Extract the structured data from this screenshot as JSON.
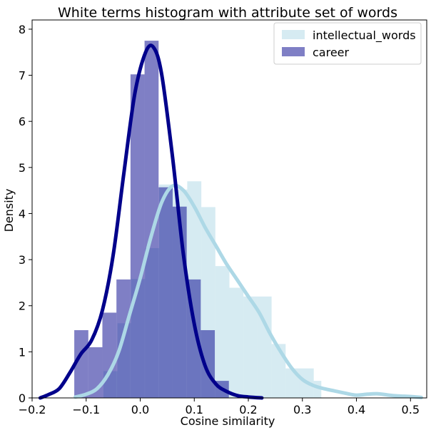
{
  "chart_data": {
    "type": "histogram",
    "title": "White terms histogram with attribute set of words",
    "xlabel": "Cosine similarity",
    "ylabel": "Density",
    "xlim": [
      -0.2,
      0.53
    ],
    "ylim": [
      0,
      8.2
    ],
    "xticks": [
      -0.2,
      -0.1,
      0.0,
      0.1,
      0.2,
      0.3,
      0.4,
      0.5
    ],
    "xtick_labels": [
      "−0.2",
      "−0.1",
      "0.0",
      "0.1",
      "0.2",
      "0.3",
      "0.4",
      "0.5"
    ],
    "yticks": [
      0,
      1,
      2,
      3,
      4,
      5,
      6,
      7,
      8
    ],
    "ytick_labels": [
      "0",
      "1",
      "2",
      "3",
      "4",
      "5",
      "6",
      "7",
      "8"
    ],
    "legend_position": "top-right",
    "series": [
      {
        "name": "intellectual_words",
        "color": "#add8e6",
        "bar_alpha": 0.5,
        "bins": [
          {
            "x0": -0.068,
            "x1": -0.042,
            "density": 0.58
          },
          {
            "x0": -0.042,
            "x1": -0.017,
            "density": 1.62
          },
          {
            "x0": -0.017,
            "x1": 0.009,
            "density": 2.58
          },
          {
            "x0": 0.009,
            "x1": 0.035,
            "density": 3.25
          },
          {
            "x0": 0.035,
            "x1": 0.061,
            "density": 4.63
          },
          {
            "x0": 0.061,
            "x1": 0.087,
            "density": 4.52
          },
          {
            "x0": 0.087,
            "x1": 0.113,
            "density": 4.7
          },
          {
            "x0": 0.113,
            "x1": 0.139,
            "density": 4.14
          },
          {
            "x0": 0.139,
            "x1": 0.165,
            "density": 2.86
          },
          {
            "x0": 0.165,
            "x1": 0.191,
            "density": 2.39
          },
          {
            "x0": 0.191,
            "x1": 0.217,
            "density": 2.2
          },
          {
            "x0": 0.217,
            "x1": 0.243,
            "density": 2.2
          },
          {
            "x0": 0.243,
            "x1": 0.269,
            "density": 1.17
          },
          {
            "x0": 0.269,
            "x1": 0.295,
            "density": 0.64
          },
          {
            "x0": 0.295,
            "x1": 0.321,
            "density": 0.64
          },
          {
            "x0": 0.321,
            "x1": 0.335,
            "density": 0.37
          }
        ],
        "kde": {
          "x": [
            -0.12,
            -0.1,
            -0.08,
            -0.06,
            -0.04,
            -0.02,
            0.0,
            0.02,
            0.04,
            0.06,
            0.08,
            0.1,
            0.12,
            0.14,
            0.16,
            0.18,
            0.2,
            0.22,
            0.24,
            0.26,
            0.28,
            0.3,
            0.32,
            0.34,
            0.36,
            0.38,
            0.4,
            0.42,
            0.44,
            0.46,
            0.48,
            0.5,
            0.52
          ],
          "y": [
            0.02,
            0.08,
            0.2,
            0.5,
            1.0,
            1.8,
            2.6,
            3.5,
            4.25,
            4.6,
            4.5,
            4.15,
            3.7,
            3.3,
            2.9,
            2.55,
            2.2,
            1.85,
            1.4,
            1.0,
            0.65,
            0.4,
            0.27,
            0.2,
            0.15,
            0.1,
            0.06,
            0.08,
            0.09,
            0.06,
            0.04,
            0.03,
            0.01
          ]
        }
      },
      {
        "name": "career",
        "color": "#00008b",
        "bar_color": "#00008b",
        "bar_alpha": 0.5,
        "bins": [
          {
            "x0": -0.122,
            "x1": -0.096,
            "density": 1.47
          },
          {
            "x0": -0.096,
            "x1": -0.07,
            "density": 1.1
          },
          {
            "x0": -0.07,
            "x1": -0.044,
            "density": 1.85
          },
          {
            "x0": -0.044,
            "x1": -0.018,
            "density": 2.57
          },
          {
            "x0": -0.018,
            "x1": 0.008,
            "density": 7.02
          },
          {
            "x0": 0.008,
            "x1": 0.034,
            "density": 7.75
          },
          {
            "x0": 0.034,
            "x1": 0.06,
            "density": 4.57
          },
          {
            "x0": 0.06,
            "x1": 0.086,
            "density": 4.15
          },
          {
            "x0": 0.086,
            "x1": 0.112,
            "density": 2.57
          },
          {
            "x0": 0.112,
            "x1": 0.138,
            "density": 1.47
          },
          {
            "x0": 0.138,
            "x1": 0.164,
            "density": 0.37
          }
        ],
        "kde": {
          "x": [
            -0.185,
            -0.17,
            -0.15,
            -0.13,
            -0.11,
            -0.09,
            -0.07,
            -0.05,
            -0.03,
            -0.01,
            0.01,
            0.025,
            0.04,
            0.06,
            0.08,
            0.1,
            0.12,
            0.14,
            0.16,
            0.18,
            0.2,
            0.225
          ],
          "y": [
            0.0,
            0.07,
            0.2,
            0.55,
            0.95,
            1.25,
            1.9,
            3.1,
            4.9,
            6.6,
            7.5,
            7.6,
            7.0,
            5.2,
            3.1,
            1.6,
            0.7,
            0.3,
            0.14,
            0.05,
            0.02,
            0.0
          ]
        }
      }
    ]
  }
}
